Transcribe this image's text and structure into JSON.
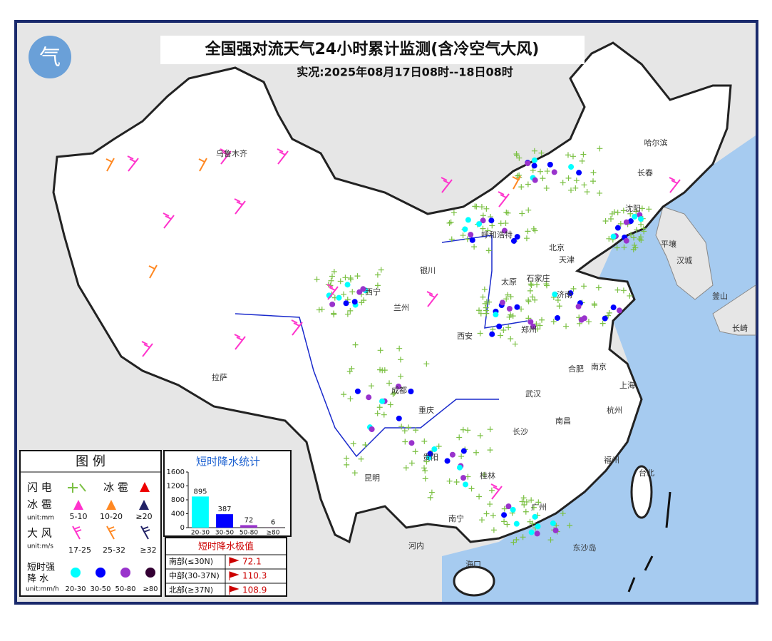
{
  "header": {
    "title": "全国强对流天气24小时累计监测(含冷空气大风)",
    "subtitle": "实况:2025年08月17日08时--18日08时"
  },
  "cities": [
    "乌鲁木齐",
    "哈尔滨",
    "长春",
    "沈阳",
    "平壤",
    "汉城",
    "釜山",
    "长崎",
    "呼和浩特",
    "北京",
    "天津",
    "银川",
    "西宁",
    "兰州",
    "太原",
    "石家庄",
    "济南",
    "郑州",
    "西安",
    "合肥",
    "南京",
    "上海",
    "武汉",
    "拉萨",
    "成都",
    "重庆",
    "长沙",
    "南昌",
    "杭州",
    "福州",
    "贵阳",
    "昆明",
    "桂林",
    "南宁",
    "广州",
    "台北",
    "河内",
    "东沙岛",
    "海口"
  ],
  "legend": {
    "title": "图 例",
    "lightning": "闪 电",
    "hail_icon": "冰 雹",
    "hail": "冰 雹",
    "hail_unit": "unit:mm",
    "hail_levels": [
      "5-10",
      "10-20",
      "≥20"
    ],
    "wind": "大 风",
    "wind_unit": "unit:m/s",
    "wind_levels": [
      "17-25",
      "25-32",
      "≥32"
    ],
    "rain": [
      "短时强",
      "降 水"
    ],
    "rain_unit": "unit:mm/h",
    "rain_levels": [
      "20-30",
      "30-50",
      "50-80",
      "≥80"
    ]
  },
  "chart_data": {
    "type": "bar",
    "title": "短时降水统计",
    "categories": [
      "20-30",
      "30-50",
      "50-80",
      "≥80"
    ],
    "values": [
      895,
      387,
      72,
      6
    ],
    "colors": [
      "#00ffff",
      "#0000ff",
      "#9933cc",
      "#330033"
    ],
    "ylim": [
      0,
      1600
    ],
    "yticks": [
      0,
      400,
      800,
      1200,
      1600
    ]
  },
  "max_table": {
    "title": "短时降水极值",
    "rows": [
      [
        "南部(≤30N)",
        72.1
      ],
      [
        "中部(30-37N)",
        110.3
      ],
      [
        "北部(≥37N)",
        108.9
      ]
    ]
  }
}
